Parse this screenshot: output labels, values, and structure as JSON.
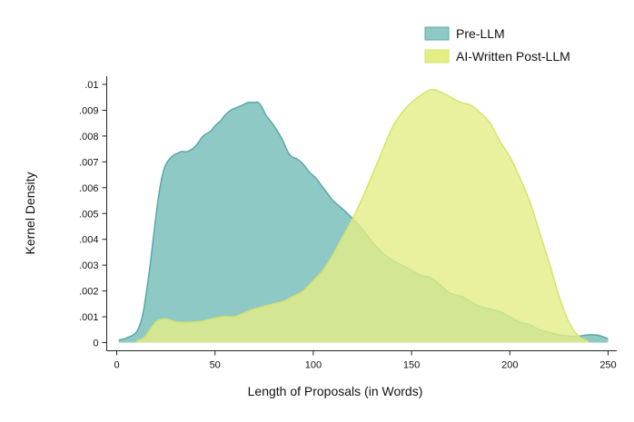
{
  "chart_data": {
    "type": "area",
    "title": "",
    "xlabel": "Length of Proposals (in Words)",
    "ylabel": "Kernel Density",
    "xlim": [
      0,
      250
    ],
    "ylim": [
      0,
      0.01
    ],
    "x_ticks": [
      0,
      50,
      100,
      150,
      200,
      250
    ],
    "x_tick_labels": [
      "0",
      "50",
      "100",
      "150",
      "200",
      "250"
    ],
    "y_ticks": [
      0,
      0.001,
      0.002,
      0.003,
      0.004,
      0.005,
      0.006,
      0.007,
      0.008,
      0.009,
      0.01
    ],
    "y_tick_labels": [
      "0",
      ".001",
      ".002",
      ".003",
      ".004",
      ".005",
      ".006",
      ".007",
      ".008",
      ".009",
      ".01"
    ],
    "grid": false,
    "legend_position": "top-right",
    "series": [
      {
        "name": "Pre-LLM",
        "color": "#8fc9c6",
        "stroke": "#5aa8a5",
        "x": [
          1,
          5,
          10,
          13,
          15,
          17,
          19,
          21,
          23,
          25,
          28,
          30,
          33,
          36,
          40,
          44,
          48,
          50,
          53,
          55,
          58,
          61,
          64,
          67,
          70,
          72,
          74,
          76,
          80,
          84,
          87,
          89,
          92,
          95,
          98,
          101,
          104,
          107,
          110,
          113,
          116,
          120,
          125,
          130,
          135,
          140,
          145,
          150,
          155,
          160,
          165,
          170,
          175,
          180,
          185,
          190,
          195,
          200,
          205,
          210,
          215,
          220,
          225,
          230,
          235,
          240,
          245,
          250
        ],
        "y": [
          0.0001,
          0.00018,
          0.0004,
          0.001,
          0.0019,
          0.003,
          0.0043,
          0.0055,
          0.0064,
          0.0069,
          0.0072,
          0.0073,
          0.0074,
          0.0074,
          0.0076,
          0.008,
          0.0082,
          0.0084,
          0.0086,
          0.0088,
          0.009,
          0.0091,
          0.0092,
          0.0093,
          0.0093,
          0.0093,
          0.0091,
          0.0088,
          0.0084,
          0.0079,
          0.0074,
          0.0072,
          0.0071,
          0.0069,
          0.0066,
          0.0064,
          0.0061,
          0.0058,
          0.0055,
          0.0053,
          0.0051,
          0.0048,
          0.0044,
          0.0039,
          0.0035,
          0.0032,
          0.003,
          0.0028,
          0.0026,
          0.0025,
          0.0022,
          0.0019,
          0.0018,
          0.0016,
          0.0014,
          0.0013,
          0.0012,
          0.001,
          0.0008,
          0.0007,
          0.0005,
          0.0004,
          0.0003,
          0.00025,
          0.00025,
          0.0003,
          0.00028,
          0.00015
        ]
      },
      {
        "name": "AI-Written Post-LLM",
        "color": "#e3ee86",
        "stroke": "#d6e36a",
        "x": [
          10,
          14,
          17,
          20,
          23,
          26,
          30,
          35,
          40,
          45,
          50,
          55,
          60,
          65,
          70,
          75,
          80,
          85,
          90,
          95,
          100,
          105,
          110,
          115,
          120,
          125,
          130,
          135,
          140,
          145,
          150,
          155,
          160,
          165,
          170,
          175,
          180,
          185,
          190,
          195,
          200,
          205,
          210,
          215,
          220,
          225,
          230,
          235,
          240
        ],
        "y": [
          5e-05,
          0.0002,
          0.0005,
          0.0008,
          0.0009,
          0.0009,
          0.0008,
          0.00078,
          0.0008,
          0.00085,
          0.00095,
          0.001,
          0.001,
          0.00115,
          0.0013,
          0.0014,
          0.0015,
          0.0016,
          0.0018,
          0.002,
          0.0024,
          0.0028,
          0.0034,
          0.0041,
          0.0048,
          0.0056,
          0.0065,
          0.0074,
          0.0083,
          0.0089,
          0.0093,
          0.0096,
          0.0098,
          0.0097,
          0.0095,
          0.0093,
          0.0092,
          0.0089,
          0.0085,
          0.0078,
          0.0072,
          0.0064,
          0.0055,
          0.0043,
          0.0031,
          0.0018,
          0.0008,
          0.00025,
          5e-05
        ]
      }
    ]
  }
}
